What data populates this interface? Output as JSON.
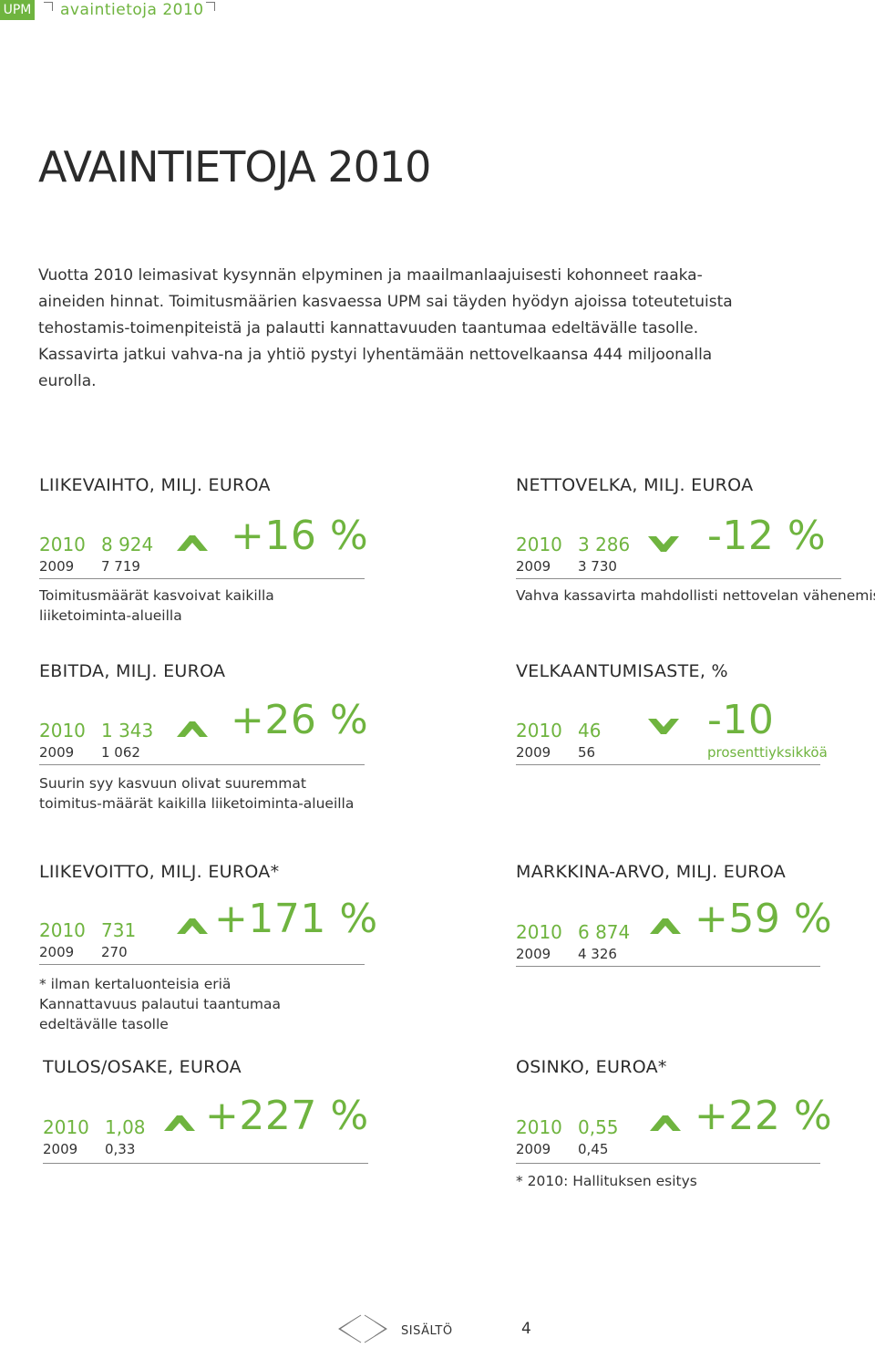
{
  "header": {
    "brand": "UPM",
    "title": "avaintietoja 2010"
  },
  "page_title": "AVAINTIETOJA 2010",
  "intro": "Vuotta 2010 leimasivat kysynnän elpyminen ja maailmanlaajuisesti kohonneet raaka-aineiden hinnat. Toimitusmäärien kasvaessa UPM sai täyden hyödyn ajoissa toteutetuista tehostamis-toimenpiteistä ja palautti kannattavuuden taantumaa edeltävälle tasolle. Kassavirta jatkui vahva-na ja yhtiö pystyi lyhentämään nettovelkaansa 444 miljoonalla eurolla.",
  "colors": {
    "accent": "#6fb43f",
    "text": "#2b2b2b",
    "rule": "#8d8d8d"
  },
  "kpis": {
    "liikevaihto": {
      "label": "LIIKEVAIHTO, MILJ. EUROA",
      "year_current": "2010",
      "value_current": "8 924",
      "year_previous": "2009",
      "value_previous": "7 719",
      "change": "+16 %",
      "direction": "up",
      "note": "Toimitusmäärät kasvoivat kaikilla liiketoiminta-alueilla"
    },
    "nettovelka": {
      "label": "NETTOVELKA, MILJ. EUROA",
      "year_current": "2010",
      "value_current": "3 286",
      "year_previous": "2009",
      "value_previous": "3 730",
      "change": "-12 %",
      "direction": "down",
      "note": "Vahva kassavirta mahdollisti nettovelan vähenemisen"
    },
    "ebitda": {
      "label": "EBITDA, MILJ. EUROA",
      "year_current": "2010",
      "value_current": "1 343",
      "year_previous": "2009",
      "value_previous": "1 062",
      "change": "+26 %",
      "direction": "up",
      "note": "Suurin syy kasvuun olivat suuremmat toimitus-määrät kaikilla liiketoiminta-alueilla"
    },
    "velkaantumisaste": {
      "label": "VELKAANTUMISASTE, %",
      "year_current": "2010",
      "value_current": "46",
      "year_previous": "2009",
      "value_previous": "56",
      "change": "-10",
      "change_note": "prosenttiyksikköä",
      "direction": "down"
    },
    "liikevoitto": {
      "label": "LIIKEVOITTO, MILJ. EUROA*",
      "year_current": "2010",
      "value_current": "731",
      "year_previous": "2009",
      "value_previous": "270",
      "change": "+171 %",
      "direction": "up",
      "note": "* ilman kertaluonteisia eriä\nKannattavuus palautui taantumaa edeltävälle tasolle"
    },
    "markkina_arvo": {
      "label": "MARKKINA-ARVO, MILJ. EUROA",
      "year_current": "2010",
      "value_current": "6 874",
      "year_previous": "2009",
      "value_previous": "4 326",
      "change": "+59 %",
      "direction": "up"
    },
    "tulos_osake": {
      "label": "TULOS/OSAKE, EUROA",
      "year_current": "2010",
      "value_current": "1,08",
      "year_previous": "2009",
      "value_previous": "0,33",
      "change": "+227 %",
      "direction": "up"
    },
    "osinko": {
      "label": "OSINKO, EUROA*",
      "year_current": "2010",
      "value_current": "0,55",
      "year_previous": "2009",
      "value_previous": "0,45",
      "change": "+22 %",
      "direction": "up",
      "note": "* 2010: Hallituksen esitys"
    }
  },
  "footer": {
    "contents_link": "SISÄLTÖ",
    "page_number": "4"
  }
}
